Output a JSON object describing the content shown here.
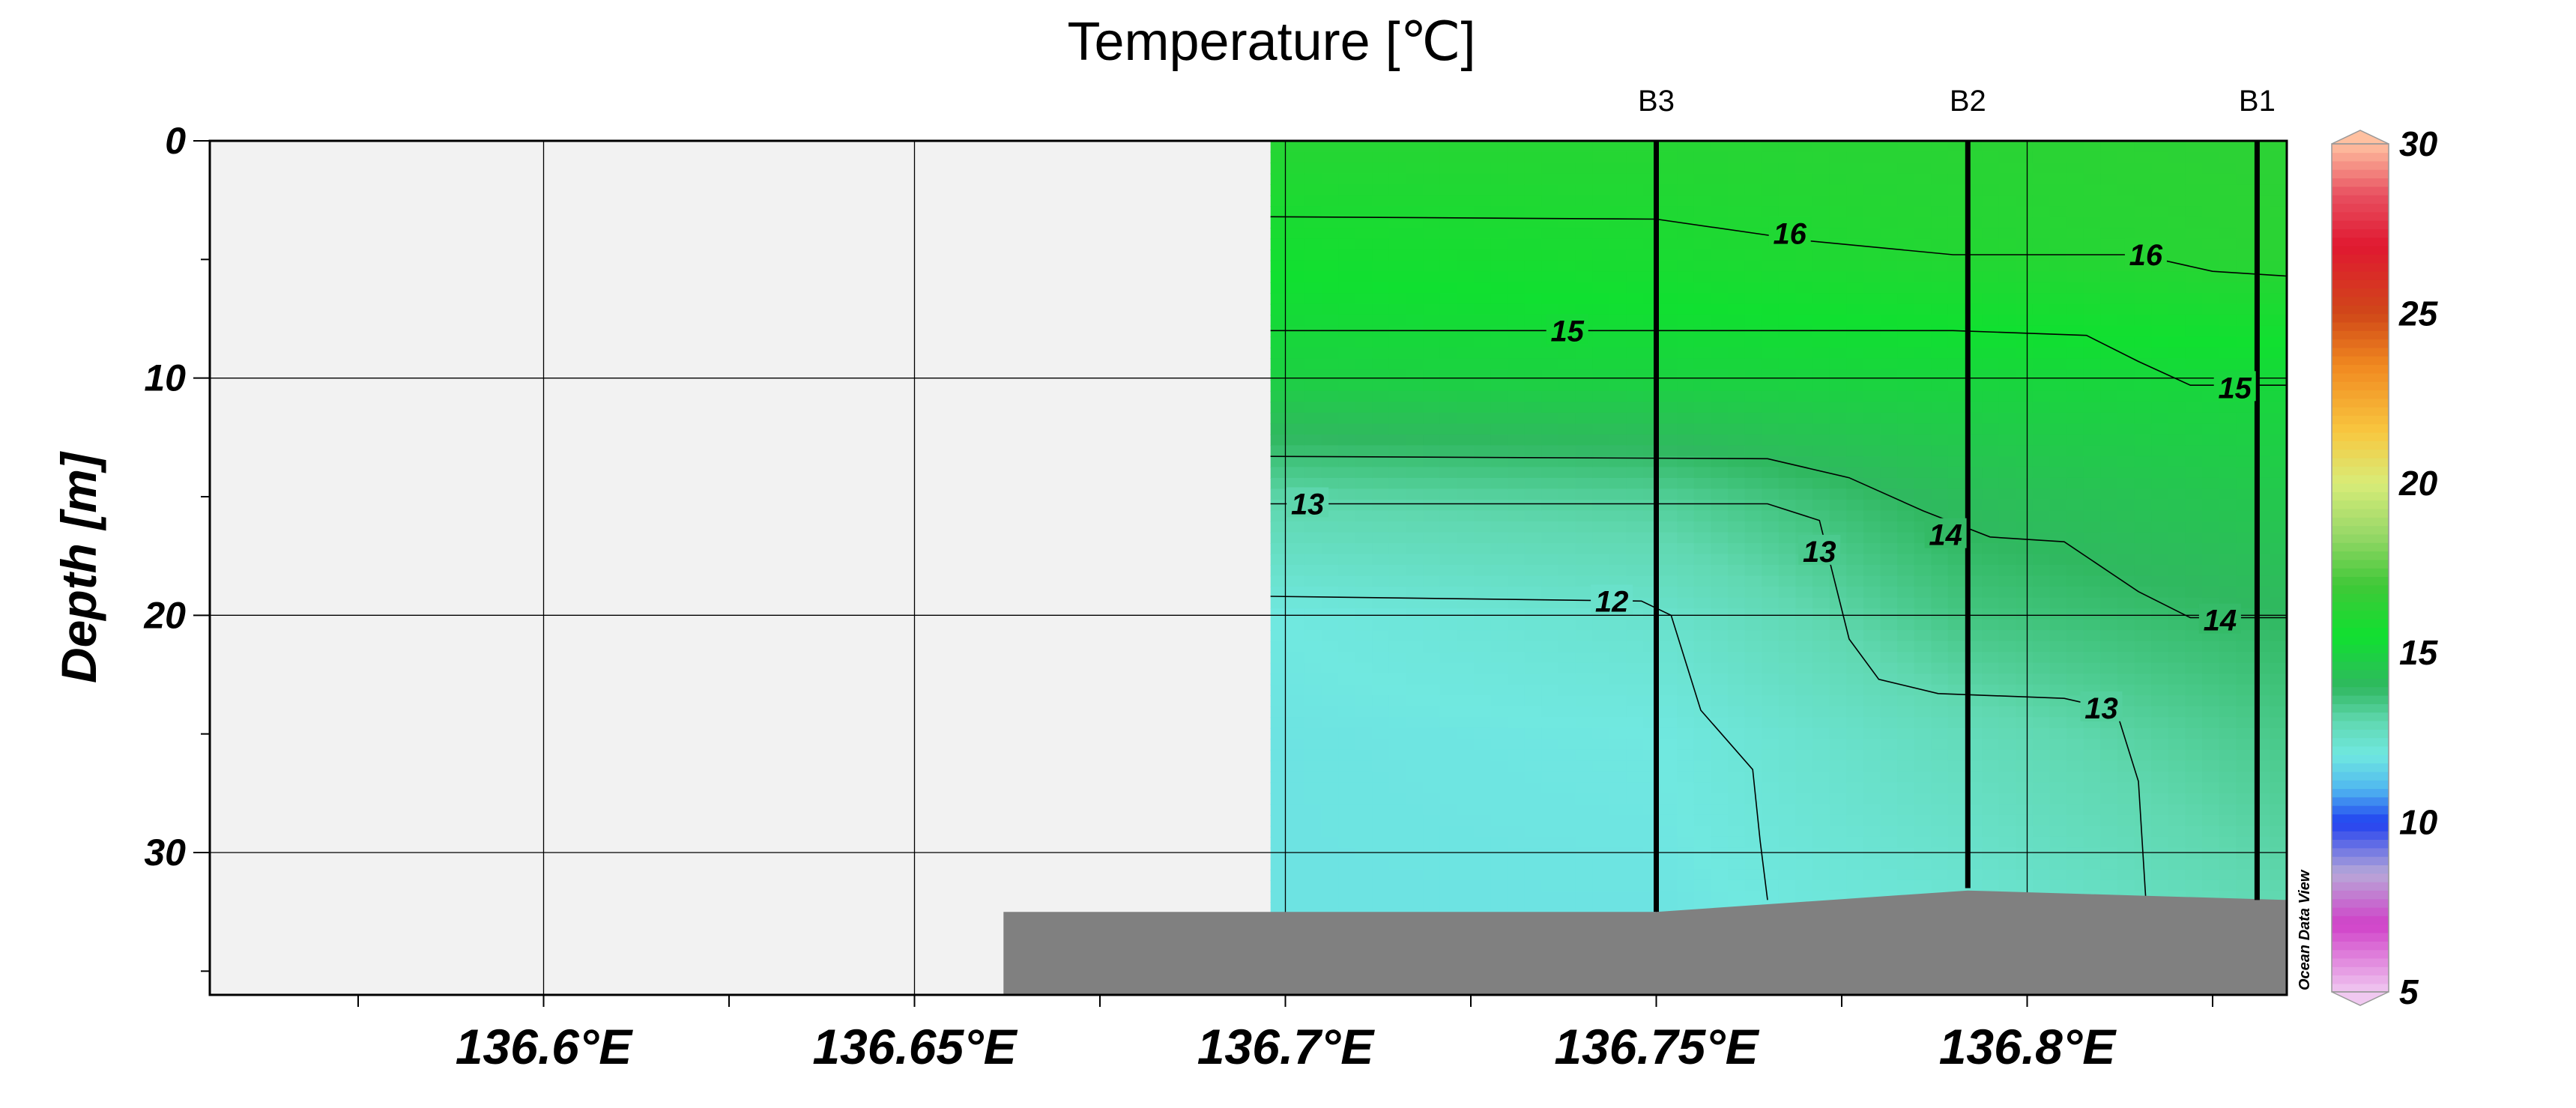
{
  "chart_data": {
    "type": "heatmap",
    "title": "Temperature [℃]",
    "xlabel": "",
    "ylabel": "Depth [m]",
    "xlim": [
      136.555,
      136.835
    ],
    "ylim": [
      36,
      0
    ],
    "x_ticks": [
      {
        "value": 136.6,
        "label": "136.6°E"
      },
      {
        "value": 136.65,
        "label": "136.65°E"
      },
      {
        "value": 136.7,
        "label": "136.7°E"
      },
      {
        "value": 136.75,
        "label": "136.75°E"
      },
      {
        "value": 136.8,
        "label": "136.8°E"
      }
    ],
    "y_ticks": [
      0,
      10,
      20,
      30
    ],
    "grid": true,
    "stations": [
      {
        "name": "B3",
        "lon": 136.75,
        "max_depth": 32.5
      },
      {
        "name": "B2",
        "lon": 136.792,
        "max_depth": 31.5
      },
      {
        "name": "B1",
        "lon": 136.831,
        "max_depth": 32.0
      }
    ],
    "data_extent": {
      "lon_min": 136.698,
      "lon_max": 136.835
    },
    "bathymetry": [
      [
        136.662,
        32.5
      ],
      [
        136.75,
        32.5
      ],
      [
        136.792,
        31.6
      ],
      [
        136.835,
        32.0
      ]
    ],
    "temperature_field": {
      "description_rows": [
        {
          "depth": 0,
          "values": [
            16.2,
            16.2,
            16.3,
            16.4
          ]
        },
        {
          "depth": 5,
          "values": [
            15.6,
            15.8,
            16.1,
            16.3
          ]
        },
        {
          "depth": 10,
          "values": [
            14.9,
            15.0,
            15.1,
            15.2
          ]
        },
        {
          "depth": 15,
          "values": [
            13.1,
            13.3,
            14.2,
            14.6
          ]
        },
        {
          "depth": 20,
          "values": [
            12.0,
            12.4,
            13.6,
            14.0
          ]
        },
        {
          "depth": 25,
          "values": [
            11.9,
            12.0,
            12.8,
            13.5
          ]
        },
        {
          "depth": 32,
          "values": [
            11.9,
            11.9,
            12.3,
            13.0
          ]
        }
      ],
      "lons": [
        136.698,
        136.75,
        136.792,
        136.835
      ]
    },
    "contours": [
      {
        "level": 16,
        "label": "16",
        "points": [
          [
            136.698,
            3.2
          ],
          [
            136.75,
            3.3
          ],
          [
            136.77,
            4.2
          ],
          [
            136.79,
            4.8
          ],
          [
            136.815,
            4.8
          ],
          [
            136.825,
            5.5
          ],
          [
            136.835,
            5.7
          ]
        ]
      },
      {
        "level": 15,
        "label": "15",
        "points": [
          [
            136.698,
            8.0
          ],
          [
            136.79,
            8.0
          ],
          [
            136.808,
            8.2
          ],
          [
            136.815,
            9.3
          ],
          [
            136.822,
            10.3
          ],
          [
            136.835,
            10.3
          ]
        ]
      },
      {
        "level": 14,
        "label": "14",
        "points": [
          [
            136.698,
            13.3
          ],
          [
            136.765,
            13.4
          ],
          [
            136.776,
            14.2
          ],
          [
            136.786,
            15.6
          ],
          [
            136.795,
            16.7
          ],
          [
            136.805,
            16.9
          ],
          [
            136.815,
            19.0
          ],
          [
            136.822,
            20.1
          ],
          [
            136.835,
            20.1
          ]
        ]
      },
      {
        "level": 13,
        "label": "13",
        "points": [
          [
            136.698,
            15.3
          ],
          [
            136.765,
            15.3
          ],
          [
            136.772,
            16.0
          ],
          [
            136.774,
            18.5
          ],
          [
            136.776,
            21.0
          ],
          [
            136.78,
            22.7
          ],
          [
            136.788,
            23.3
          ],
          [
            136.805,
            23.5
          ],
          [
            136.812,
            24.0
          ],
          [
            136.815,
            27.0
          ],
          [
            136.816,
            32.0
          ]
        ]
      },
      {
        "level": 12,
        "label": "12",
        "points": [
          [
            136.698,
            19.2
          ],
          [
            136.748,
            19.4
          ],
          [
            136.752,
            20.0
          ],
          [
            136.756,
            24.0
          ],
          [
            136.763,
            26.5
          ],
          [
            136.764,
            29.5
          ],
          [
            136.765,
            32.0
          ]
        ]
      }
    ],
    "contour_labels": [
      {
        "label": "16",
        "lon": 136.768,
        "depth": 3.9
      },
      {
        "label": "16",
        "lon": 136.816,
        "depth": 4.8
      },
      {
        "label": "15",
        "lon": 136.738,
        "depth": 8.0
      },
      {
        "label": "15",
        "lon": 136.828,
        "depth": 10.4
      },
      {
        "label": "14",
        "lon": 136.789,
        "depth": 16.6
      },
      {
        "label": "14",
        "lon": 136.826,
        "depth": 20.2
      },
      {
        "label": "13",
        "lon": 136.703,
        "depth": 15.3
      },
      {
        "label": "13",
        "lon": 136.772,
        "depth": 17.3
      },
      {
        "label": "13",
        "lon": 136.81,
        "depth": 23.9
      },
      {
        "label": "12",
        "lon": 136.744,
        "depth": 19.4
      }
    ],
    "colorbar": {
      "min": 5,
      "max": 30,
      "ticks": [
        5,
        10,
        15,
        20,
        25,
        30
      ],
      "stops": [
        {
          "value": 5,
          "color": "#f0c8f0"
        },
        {
          "value": 7,
          "color": "#d040c8"
        },
        {
          "value": 8.5,
          "color": "#b8a8d8"
        },
        {
          "value": 10,
          "color": "#2040f0"
        },
        {
          "value": 11,
          "color": "#50b8f0"
        },
        {
          "value": 12,
          "color": "#70e8e0"
        },
        {
          "value": 13,
          "color": "#60d8b0"
        },
        {
          "value": 14,
          "color": "#30b860"
        },
        {
          "value": 15.5,
          "color": "#10e030"
        },
        {
          "value": 17,
          "color": "#40c838"
        },
        {
          "value": 18.5,
          "color": "#98d868"
        },
        {
          "value": 20,
          "color": "#d8ec78"
        },
        {
          "value": 21.5,
          "color": "#f8c840"
        },
        {
          "value": 23.5,
          "color": "#f08820"
        },
        {
          "value": 25,
          "color": "#d04818"
        },
        {
          "value": 27,
          "color": "#e01830"
        },
        {
          "value": 28.5,
          "color": "#e85060"
        },
        {
          "value": 30,
          "color": "#ffc0a0"
        }
      ]
    }
  },
  "watermark": "Ocean Data View",
  "colors": {
    "land": "#f2f2f2",
    "bathymetry": "#808080",
    "grid": "#000000"
  }
}
